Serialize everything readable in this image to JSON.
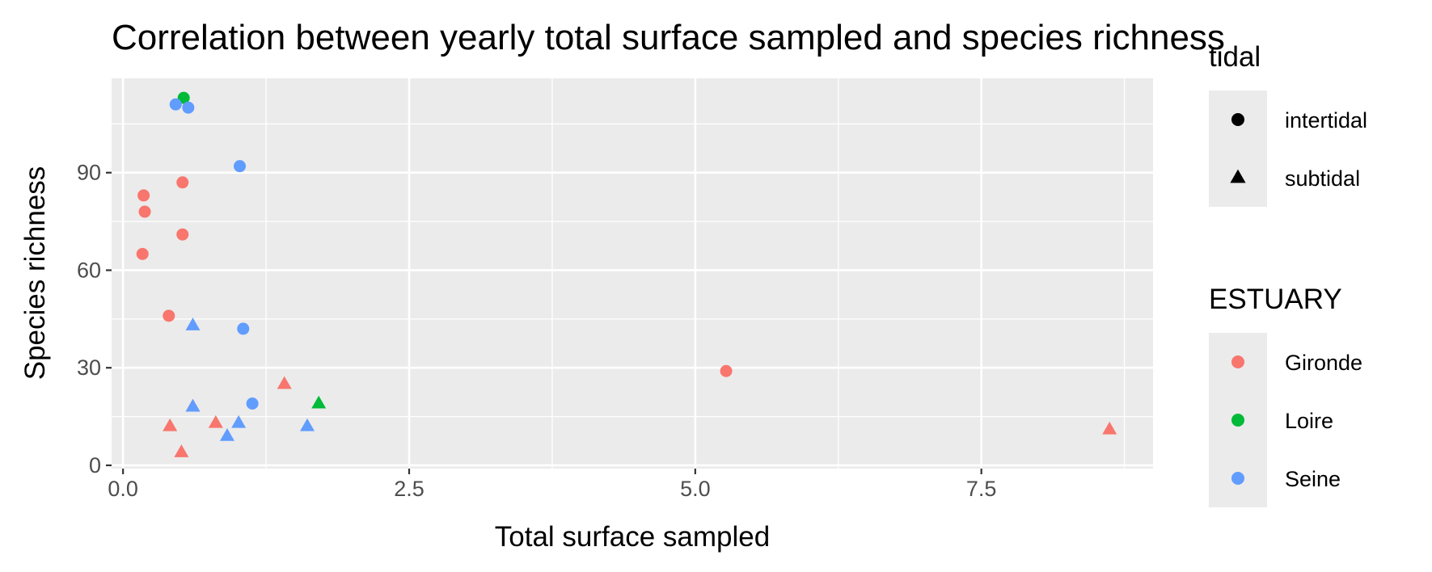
{
  "chart_data": {
    "type": "scatter",
    "title": "Correlation between yearly total surface sampled and species richness",
    "xlabel": "Total surface sampled",
    "ylabel": "Species richness",
    "xlim": [
      -0.1,
      9.0
    ],
    "ylim": [
      -1.0,
      119.0
    ],
    "x_ticks": [
      {
        "value": 0,
        "label": "0.0"
      },
      {
        "value": 2.5,
        "label": "2.5"
      },
      {
        "value": 5,
        "label": "5.0"
      },
      {
        "value": 7.5,
        "label": "7.5"
      }
    ],
    "x_minor_ticks": [
      1.25,
      3.75,
      6.25,
      8.75
    ],
    "y_ticks": [
      {
        "value": 0,
        "label": "0"
      },
      {
        "value": 30,
        "label": "30"
      },
      {
        "value": 60,
        "label": "60"
      },
      {
        "value": 90,
        "label": "90"
      }
    ],
    "y_minor_ticks": [
      15,
      45,
      75,
      105
    ],
    "grid": true,
    "panel_background": "#ebebeb",
    "grid_color": "#ffffff",
    "legends": [
      {
        "title": "tidal",
        "kind": "shape",
        "entries": [
          {
            "label": "intertidal",
            "shape": "circle"
          },
          {
            "label": "subtidal",
            "shape": "triangle"
          }
        ]
      },
      {
        "title": "ESTUARY",
        "kind": "color",
        "entries": [
          {
            "label": "Gironde",
            "color": "#f8766d"
          },
          {
            "label": "Loire",
            "color": "#00ba38"
          },
          {
            "label": "Seine",
            "color": "#619cff"
          }
        ]
      }
    ],
    "series": [
      {
        "name": "Gironde",
        "color": "#f8766d",
        "points": [
          {
            "x": 0.18,
            "y": 83,
            "shape": "circle"
          },
          {
            "x": 0.19,
            "y": 78,
            "shape": "circle"
          },
          {
            "x": 0.17,
            "y": 65,
            "shape": "circle"
          },
          {
            "x": 0.52,
            "y": 87,
            "shape": "circle"
          },
          {
            "x": 0.52,
            "y": 71,
            "shape": "circle"
          },
          {
            "x": 0.4,
            "y": 46,
            "shape": "circle"
          },
          {
            "x": 5.27,
            "y": 29,
            "shape": "circle"
          },
          {
            "x": 1.41,
            "y": 25,
            "shape": "triangle"
          },
          {
            "x": 0.61,
            "y": 18,
            "shape": "triangle"
          },
          {
            "x": 0.41,
            "y": 12,
            "shape": "triangle"
          },
          {
            "x": 0.81,
            "y": 13,
            "shape": "triangle"
          },
          {
            "x": 0.51,
            "y": 4,
            "shape": "triangle"
          },
          {
            "x": 8.62,
            "y": 11,
            "shape": "triangle"
          }
        ]
      },
      {
        "name": "Loire",
        "color": "#00ba38",
        "points": [
          {
            "x": 0.53,
            "y": 113,
            "shape": "circle"
          },
          {
            "x": 1.71,
            "y": 19,
            "shape": "triangle"
          }
        ]
      },
      {
        "name": "Seine",
        "color": "#619cff",
        "points": [
          {
            "x": 0.46,
            "y": 111,
            "shape": "circle"
          },
          {
            "x": 0.57,
            "y": 110,
            "shape": "circle"
          },
          {
            "x": 1.02,
            "y": 92,
            "shape": "circle"
          },
          {
            "x": 1.05,
            "y": 42,
            "shape": "circle"
          },
          {
            "x": 1.13,
            "y": 19,
            "shape": "circle"
          },
          {
            "x": 0.61,
            "y": 43,
            "shape": "triangle"
          },
          {
            "x": 0.61,
            "y": 18,
            "shape": "triangle"
          },
          {
            "x": 1.01,
            "y": 13,
            "shape": "triangle"
          },
          {
            "x": 0.91,
            "y": 9,
            "shape": "triangle"
          },
          {
            "x": 1.61,
            "y": 12,
            "shape": "triangle"
          }
        ]
      }
    ]
  }
}
